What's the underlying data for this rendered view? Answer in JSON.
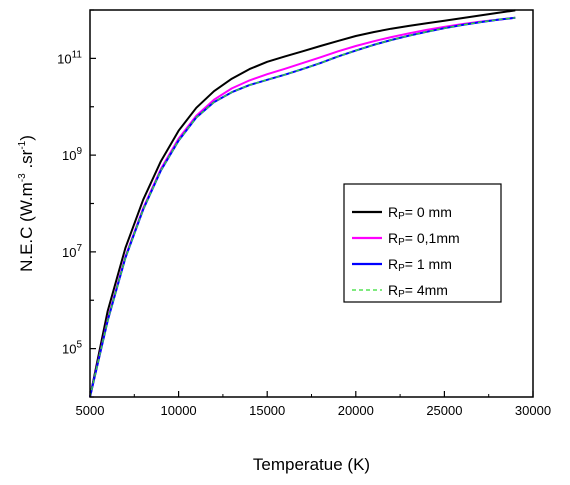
{
  "chart_data": {
    "type": "line",
    "xlabel": "Temperatue (K)",
    "ylabel": {
      "prefix": "N.E.C (W.m",
      "exp1": "-3",
      "middle": " .sr",
      "exp2": "-1",
      "suffix": ")"
    },
    "xlim": [
      5000,
      30000
    ],
    "xticks": [
      5000,
      10000,
      15000,
      20000,
      25000,
      30000
    ],
    "ylim": [
      10000.0,
      1000000000000.0
    ],
    "yscale": "log",
    "yticks": [
      {
        "value": 100000,
        "base": "10",
        "exp": "5"
      },
      {
        "value": 10000000,
        "base": "10",
        "exp": "7"
      },
      {
        "value": 1000000000,
        "base": "10",
        "exp": "9"
      },
      {
        "value": 100000000000,
        "base": "10",
        "exp": "11"
      }
    ],
    "grid": false,
    "legend_position": "center-right",
    "x": [
      5000,
      6000,
      7000,
      8000,
      9000,
      10000,
      11000,
      12000,
      13000,
      14000,
      15000,
      16000,
      17000,
      18000,
      19000,
      20000,
      21000,
      22000,
      23000,
      24000,
      25000,
      26000,
      27000,
      28000,
      29000
    ],
    "series": [
      {
        "name": "Rp= 0 mm",
        "label_main": "R",
        "label_sub": "P",
        "label_rest": "= 0 mm",
        "color": "#000000",
        "dashed": false,
        "values": [
          8000,
          600000,
          12000000,
          120000000,
          750000000,
          3200000000,
          9500000000,
          21000000000,
          38000000000,
          60000000000,
          85000000000,
          110000000000,
          140000000000,
          180000000000,
          230000000000,
          290000000000,
          350000000000,
          410000000000,
          470000000000,
          530000000000,
          600000000000,
          680000000000,
          770000000000,
          870000000000,
          980000000000
        ]
      },
      {
        "name": "Rp= 0,1mm",
        "label_main": "R",
        "label_sub": "P",
        "label_rest": "= 0,1mm",
        "color": "#ff00ff",
        "dashed": false,
        "values": [
          8000,
          400000,
          8000000,
          80000000,
          520000000,
          2200000000,
          6500000000,
          14000000000,
          24000000000,
          35000000000,
          47000000000,
          61000000000,
          80000000000,
          105000000000,
          140000000000,
          180000000000,
          225000000000,
          275000000000,
          330000000000,
          390000000000,
          450000000000,
          510000000000,
          570000000000,
          630000000000,
          690000000000
        ]
      },
      {
        "name": "Rp= 1 mm",
        "label_main": "R",
        "label_sub": "P",
        "label_rest": "= 1 mm",
        "color": "#0000ff",
        "dashed": false,
        "values": [
          8000,
          380000,
          7500000,
          75000000,
          480000000,
          2000000000,
          6000000000,
          12500000000,
          20000000000,
          28000000000,
          36000000000,
          46000000000,
          60000000000,
          80000000000,
          110000000000,
          145000000000,
          190000000000,
          240000000000,
          295000000000,
          355000000000,
          420000000000,
          490000000000,
          560000000000,
          630000000000,
          690000000000
        ]
      },
      {
        "name": "Rp= 4mm",
        "label_main": "R",
        "label_sub": "P",
        "label_rest": "=  4mm",
        "color": "#33dd33",
        "dashed": true,
        "values": [
          8000,
          380000,
          7500000,
          75000000,
          480000000,
          2000000000,
          6000000000,
          12500000000,
          20000000000,
          28000000000,
          36000000000,
          46000000000,
          60000000000,
          80000000000,
          110000000000,
          145000000000,
          190000000000,
          240000000000,
          295000000000,
          355000000000,
          420000000000,
          490000000000,
          560000000000,
          630000000000,
          690000000000
        ]
      }
    ]
  }
}
